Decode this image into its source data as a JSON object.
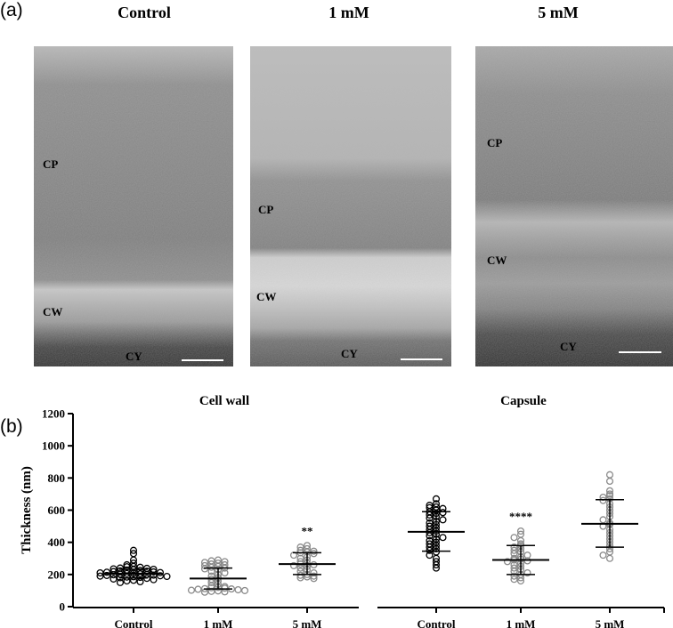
{
  "panel_a": {
    "label": "(a)",
    "columns": [
      {
        "title": "Control",
        "labels": {
          "cp": "CP",
          "cw": "CW",
          "cy": "CY"
        }
      },
      {
        "title": "1 mM",
        "labels": {
          "cp": "CP",
          "cw": "CW",
          "cy": "CY"
        }
      },
      {
        "title": "5 mM",
        "labels": {
          "cp": "CP",
          "cw": "CW",
          "cy": "CY"
        }
      }
    ]
  },
  "panel_b": {
    "label": "(b)"
  },
  "colors": {
    "black": "#000000",
    "gray_marker": "#8a8a8a"
  },
  "chart_data": [
    {
      "type": "scatter",
      "title": "Cell wall",
      "ylabel": "Thickness (nm)",
      "ylim": [
        0,
        1200
      ],
      "yticks": [
        "0",
        "200",
        "400",
        "600",
        "800",
        "1000",
        "1200"
      ],
      "categories": [
        "Control",
        "1 mM",
        "5 mM"
      ],
      "annotations": [
        "",
        "",
        "**"
      ],
      "groups": [
        {
          "name": "Control",
          "marker_color": "black",
          "mean": 205,
          "sd_low": 178,
          "sd_high": 232,
          "values": [
            350,
            330,
            290,
            270,
            260,
            250,
            248,
            245,
            240,
            238,
            235,
            232,
            230,
            228,
            225,
            222,
            220,
            218,
            216,
            214,
            212,
            210,
            208,
            206,
            204,
            202,
            200,
            198,
            196,
            194,
            192,
            190,
            188,
            186,
            184,
            182,
            180,
            176,
            172,
            168,
            164,
            160,
            155,
            150
          ]
        },
        {
          "name": "1 mM",
          "marker_color": "gray",
          "mean": 175,
          "sd_low": 110,
          "sd_high": 240,
          "values": [
            290,
            285,
            280,
            275,
            270,
            265,
            260,
            255,
            250,
            245,
            240,
            235,
            230,
            220,
            210,
            200,
            190,
            180,
            170,
            160,
            150,
            140,
            130,
            125,
            120,
            118,
            115,
            112,
            110,
            108,
            105,
            102,
            100,
            98,
            95,
            92,
            90
          ]
        },
        {
          "name": "5 mM",
          "marker_color": "gray",
          "mean": 265,
          "sd_low": 200,
          "sd_high": 335,
          "values": [
            380,
            370,
            360,
            350,
            345,
            340,
            335,
            330,
            320,
            310,
            300,
            290,
            280,
            270,
            265,
            260,
            255,
            250,
            240,
            230,
            220,
            210,
            200,
            195,
            190,
            185,
            180,
            175
          ]
        }
      ]
    },
    {
      "type": "scatter",
      "title": "Capsule",
      "ylim": [
        0,
        1200
      ],
      "categories": [
        "Control",
        "1 mM",
        "5 mM"
      ],
      "annotations": [
        "",
        "****",
        ""
      ],
      "groups": [
        {
          "name": "Control",
          "marker_color": "black",
          "mean": 465,
          "sd_low": 345,
          "sd_high": 590,
          "values": [
            670,
            640,
            630,
            620,
            615,
            610,
            600,
            590,
            585,
            580,
            570,
            560,
            550,
            540,
            530,
            520,
            510,
            500,
            490,
            480,
            470,
            460,
            450,
            440,
            430,
            420,
            410,
            400,
            390,
            380,
            370,
            360,
            350,
            340,
            320,
            300,
            280,
            260,
            240
          ]
        },
        {
          "name": "1 mM",
          "marker_color": "gray",
          "mean": 290,
          "sd_low": 200,
          "sd_high": 380,
          "values": [
            470,
            450,
            430,
            410,
            390,
            380,
            370,
            360,
            350,
            340,
            330,
            320,
            310,
            300,
            295,
            290,
            285,
            280,
            270,
            260,
            250,
            240,
            230,
            220,
            210,
            200,
            190,
            180,
            170,
            160
          ]
        },
        {
          "name": "5 mM",
          "marker_color": "gray",
          "mean": 515,
          "sd_low": 370,
          "sd_high": 665,
          "values": [
            820,
            780,
            720,
            700,
            690,
            680,
            670,
            660,
            640,
            620,
            600,
            580,
            560,
            540,
            520,
            510,
            500,
            480,
            460,
            440,
            420,
            400,
            380,
            360,
            340,
            320,
            300
          ]
        }
      ]
    }
  ]
}
